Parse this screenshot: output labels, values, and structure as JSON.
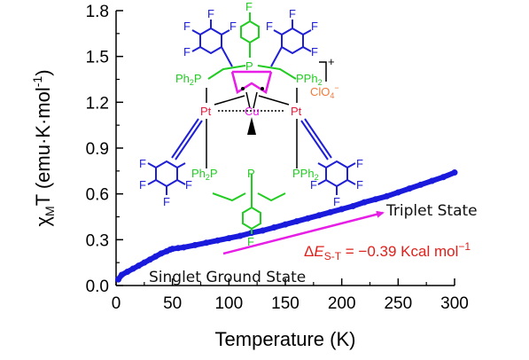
{
  "chart_data": {
    "type": "line",
    "xlabel": "Temperature (K)",
    "ylabel_prefix": "χ",
    "ylabel_sub": "M",
    "ylabel_rest": "T (emu·K·mol",
    "ylabel_sup": "-1",
    "ylabel_end": ")",
    "xlim": [
      0,
      300
    ],
    "ylim": [
      0,
      1.8
    ],
    "xticks": [
      "0",
      "50",
      "100",
      "150",
      "200",
      "250",
      "300"
    ],
    "yticks": [
      "0.0",
      "0.3",
      "0.6",
      "0.9",
      "1.2",
      "1.5",
      "1.8"
    ],
    "grid": false,
    "series": [
      {
        "color": "#1a1adc",
        "x": [
          2,
          5,
          10,
          15,
          20,
          25,
          30,
          35,
          40,
          45,
          48,
          50,
          55,
          60,
          70,
          80,
          90,
          100,
          110,
          120,
          130,
          140,
          150,
          160,
          170,
          180,
          190,
          200,
          210,
          220,
          230,
          240,
          250,
          260,
          270,
          280,
          290,
          300
        ],
        "y": [
          0.04,
          0.07,
          0.09,
          0.11,
          0.13,
          0.15,
          0.17,
          0.19,
          0.21,
          0.225,
          0.235,
          0.24,
          0.245,
          0.25,
          0.265,
          0.28,
          0.295,
          0.31,
          0.325,
          0.345,
          0.36,
          0.38,
          0.4,
          0.42,
          0.44,
          0.46,
          0.48,
          0.5,
          0.52,
          0.545,
          0.565,
          0.585,
          0.61,
          0.635,
          0.66,
          0.685,
          0.71,
          0.74
        ]
      }
    ],
    "annotations": {
      "triplet": "Triplet State",
      "singlet": "Singlet Ground State",
      "delta_symbol": "Δ",
      "delta_E": "E",
      "delta_sub": "S-T",
      "delta_value": " = −0.39 Kcal mol",
      "delta_sup": "−1",
      "arrow_color": "#e61ee6"
    }
  },
  "molecule": {
    "atoms": {
      "F": "F",
      "Pt": "Pt",
      "Cu": "Cu",
      "P": "P",
      "Ph2P": "Ph",
      "Ph2P_sub": "2",
      "PPh2_pre": "PPh",
      "PPh2_sub": "2",
      "charge": "+",
      "counterion_pre": "ClO",
      "counterion_sub": "4",
      "counterion_sup": "−"
    },
    "colors": {
      "phosphine": "#22cc22",
      "pentafluorophenyl": "#1f1fd6",
      "platinum": "#e8193c",
      "copper": "#e61ee6",
      "fluoro_aryl": "#22cc22",
      "counterion": "#f07a3a"
    }
  }
}
